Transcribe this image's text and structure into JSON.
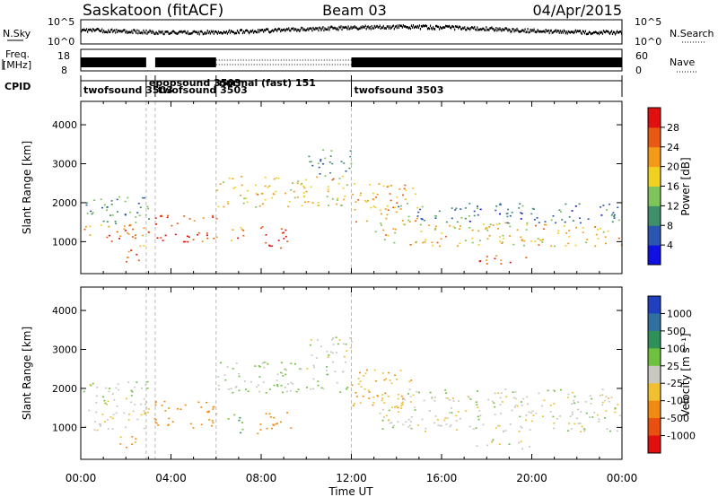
{
  "header": {
    "station": "Saskatoon (fitACF)",
    "beam": "Beam 03",
    "date": "04/Apr/2015"
  },
  "noise_panel": {
    "left_label": "N.Sky",
    "right_label": "N.Search",
    "left_ticks": [
      "10^5",
      "10^0"
    ],
    "right_ticks": [
      "10^5",
      "10^0"
    ]
  },
  "freq_panel": {
    "left_label_line1": "Freq.",
    "left_label_line2": "[MHz]",
    "left_ticks": [
      "18",
      "8"
    ],
    "right_ticks": [
      "60",
      "0"
    ],
    "right_label": "Nave"
  },
  "cpid_panel": {
    "label": "CPID",
    "segments": [
      {
        "name": "twofsound 3503",
        "start_h": 0.0,
        "end_h": 2.9
      },
      {
        "name": "epopsound 3503",
        "start_h": 2.9,
        "end_h": 3.3
      },
      {
        "name": "twofsound 3503",
        "start_h": 3.3,
        "end_h": 6.0
      },
      {
        "name": "normal (fast) 151",
        "start_h": 6.0,
        "end_h": 12.0
      },
      {
        "name": "twofsound 3503",
        "start_h": 12.0,
        "end_h": 24.0
      }
    ]
  },
  "power_colorbar": {
    "label": "Power [dB]",
    "ticks": [
      "4",
      "8",
      "12",
      "16",
      "20",
      "24",
      "28"
    ],
    "colors": [
      "#1010e0",
      "#2a55b0",
      "#3f8f6a",
      "#7ec45a",
      "#f0d020",
      "#f39a18",
      "#e85a14",
      "#e01010"
    ]
  },
  "velocity_colorbar": {
    "label": "Velocity [m s⁻¹]",
    "ticks": [
      "1000",
      "500",
      "100",
      "25",
      "-25",
      "-100",
      "-500",
      "-1000"
    ],
    "colors": [
      "#2040c0",
      "#3070a0",
      "#30905a",
      "#70c040",
      "#c8c8c0",
      "#f0c030",
      "#f08a10",
      "#e85010",
      "#e01010"
    ]
  },
  "axes": {
    "ylabel": "Slant Range [km]",
    "xlabel": "Time UT",
    "yticks": [
      "1000",
      "2000",
      "3000",
      "4000"
    ],
    "xticks": [
      "00:00",
      "04:00",
      "08:00",
      "12:00",
      "16:00",
      "20:00",
      "00:00"
    ]
  },
  "chart_data": {
    "type": "heatmap",
    "xlim_hours": [
      0,
      24
    ],
    "ylim_km": [
      180,
      4600
    ],
    "power_db_range": [
      0,
      30
    ],
    "velocity_range_m_s": [
      -1000,
      1000
    ],
    "dashed_markers_h": [
      2.9,
      3.3,
      6.0,
      12.0
    ],
    "scatter_bands": [
      {
        "name": "near band 00-03",
        "t0": 0.0,
        "t1": 3.0,
        "r0": 900,
        "r1": 1450,
        "power_db": 22,
        "velocity_m_s": -20
      },
      {
        "name": "far band 00-03",
        "t0": 0.0,
        "t1": 3.0,
        "r0": 1450,
        "r1": 2200,
        "power_db": 10,
        "velocity_m_s": 10
      },
      {
        "name": "patch 02-03",
        "t0": 1.7,
        "t1": 2.9,
        "r0": 500,
        "r1": 800,
        "power_db": 25,
        "velocity_m_s": -120
      },
      {
        "name": "band 03-06",
        "t0": 3.2,
        "t1": 6.0,
        "r0": 1000,
        "r1": 1700,
        "power_db": 26,
        "velocity_m_s": -300
      },
      {
        "name": "arc 06-12",
        "t0": 6.0,
        "t1": 12.0,
        "r0": 1900,
        "r1": 2700,
        "power_db": 18,
        "velocity_m_s": 15
      },
      {
        "name": "blob 08-09.5",
        "t0": 7.8,
        "t1": 9.4,
        "r0": 850,
        "r1": 1400,
        "power_db": 28,
        "velocity_m_s": -300
      },
      {
        "name": "blob 06.5-07.3",
        "t0": 6.5,
        "t1": 7.2,
        "r0": 850,
        "r1": 1400,
        "power_db": 22,
        "velocity_m_s": 120
      },
      {
        "name": "far 10-12",
        "t0": 10.0,
        "t1": 12.0,
        "r0": 2700,
        "r1": 3400,
        "power_db": 10,
        "velocity_m_s": 0
      },
      {
        "name": "descending 12-15",
        "t0": 12.0,
        "t1": 15.0,
        "r0": 1500,
        "r1": 2500,
        "power_db": 20,
        "velocity_m_s": -80
      },
      {
        "name": "band 13-24",
        "t0": 13.0,
        "t1": 24.0,
        "r0": 900,
        "r1": 1500,
        "power_db": 18,
        "velocity_m_s": 0
      },
      {
        "name": "upper band 14-24",
        "t0": 14.0,
        "t1": 24.0,
        "r0": 1500,
        "r1": 2000,
        "power_db": 8,
        "velocity_m_s": 5
      },
      {
        "name": "ground 17.5-20",
        "t0": 17.5,
        "t1": 20.0,
        "r0": 450,
        "r1": 700,
        "power_db": 26,
        "velocity_m_s": 0
      }
    ]
  }
}
